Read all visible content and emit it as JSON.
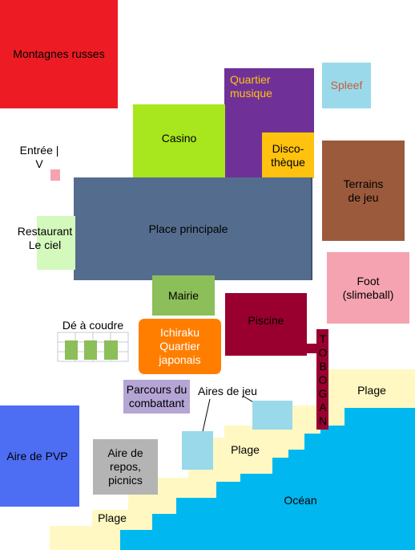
{
  "zones": {
    "montagnes_russes": {
      "label": "Montagnes russes",
      "color": "#ed1c24"
    },
    "quartier_musique": {
      "label": "Quartier\nmusique",
      "color": "#6f3198",
      "text_color": "#ffc20e"
    },
    "spleef": {
      "label": "Spleef",
      "color": "#99d9ea",
      "text_color": "#c3603a"
    },
    "casino": {
      "label": "Casino",
      "color": "#a8e61d"
    },
    "discotheque": {
      "label": "Disco-\nthèque",
      "color": "#ffc20e"
    },
    "entree": {
      "label": "Entrée |\nV",
      "marker_color": "#f5a3b0"
    },
    "terrains_de_jeu": {
      "label": "Terrains\nde jeu",
      "color": "#9c5a3c"
    },
    "place_principale": {
      "label": "Place principale",
      "color": "#546d8e"
    },
    "restaurant": {
      "label": "Restaurant\nLe ciel",
      "color": "#d3f9bc"
    },
    "foot": {
      "label": "Foot\n(slimeball)",
      "color": "#f5a3b0"
    },
    "mairie": {
      "label": "Mairie",
      "color": "#8cbe5a"
    },
    "piscine": {
      "label": "Piscine",
      "color": "#990030"
    },
    "de_a_coudre": {
      "label": "Dé à coudre",
      "color": "#8cbe5a"
    },
    "ichiraku": {
      "label": "Ichiraku\nQuartier\njaponais",
      "color": "#ff7e00",
      "text_color": "#ffffff"
    },
    "toboggan": {
      "label": "TOBOGAN",
      "color": "#990030"
    },
    "parcours": {
      "label": "Parcours du\ncombattant",
      "color": "#b5a5d5"
    },
    "aires_de_jeu": {
      "label": "Aires de jeu",
      "color": "#99d9ea"
    },
    "aire_de_pvp": {
      "label": "Aire de PVP",
      "color": "#4d6df3"
    },
    "aire_de_repos": {
      "label": "Aire de\nrepos,\npicnics",
      "color": "#b4b4b4"
    },
    "plage": {
      "labels": [
        "Plage",
        "Plage",
        "Plage"
      ],
      "color": "#fff8c2"
    },
    "ocean": {
      "label": "Océan",
      "color": "#00b7ef"
    }
  }
}
